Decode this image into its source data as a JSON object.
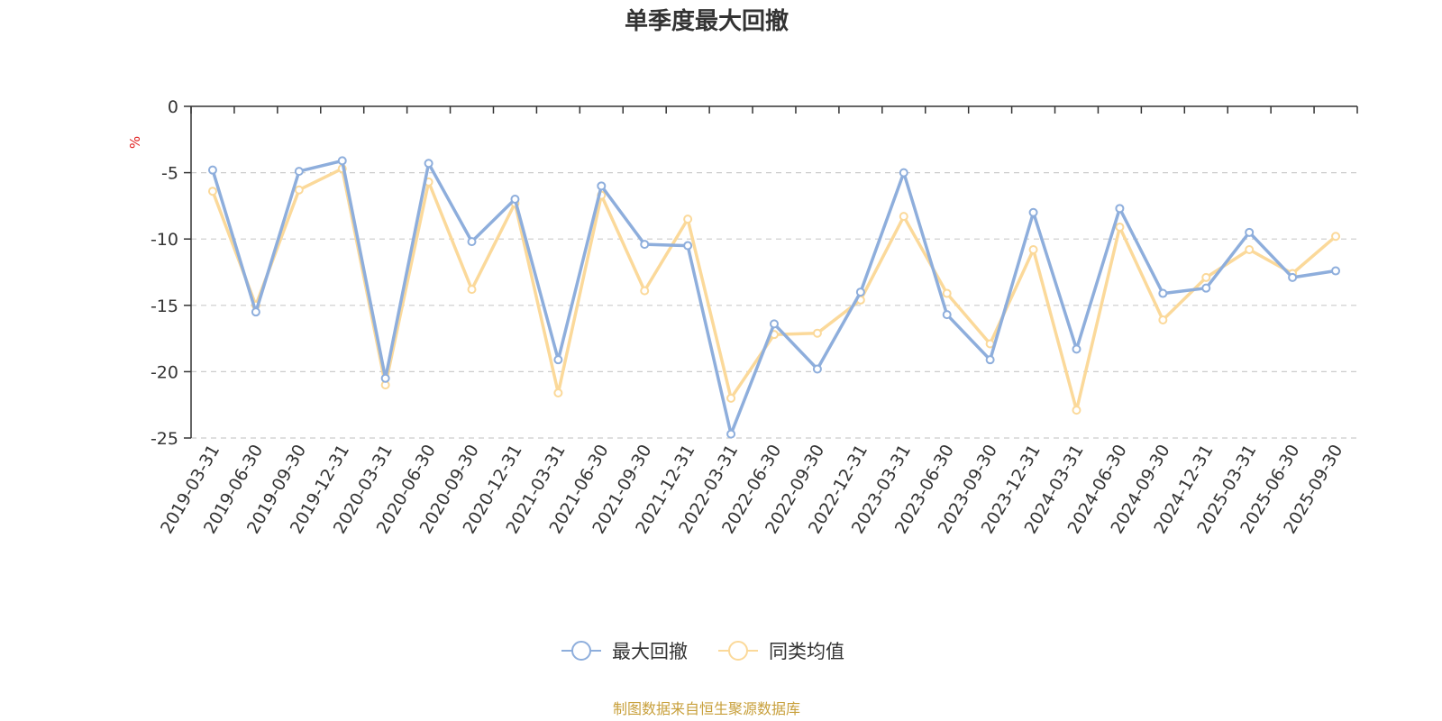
{
  "chart_data": {
    "type": "line",
    "title": "单季度最大回撤",
    "ylabel": "%",
    "ylim": [
      -25,
      0
    ],
    "yticks": [
      0,
      -5,
      -10,
      -15,
      -20,
      -25
    ],
    "grid": true,
    "legend_position": "bottom-center",
    "categories": [
      "2019-03-31",
      "2019-06-30",
      "2019-09-30",
      "2019-12-31",
      "2020-03-31",
      "2020-06-30",
      "2020-09-30",
      "2020-12-31",
      "2021-03-31",
      "2021-06-30",
      "2021-09-30",
      "2021-12-31",
      "2022-03-31",
      "2022-06-30",
      "2022-09-30",
      "2022-12-31",
      "2023-03-31",
      "2023-06-30",
      "2023-09-30",
      "2023-12-31",
      "2024-03-31",
      "2024-06-30",
      "2024-09-30",
      "2024-12-31",
      "2025-03-31",
      "2025-06-30",
      "2025-09-30"
    ],
    "series": [
      {
        "name": "最大回撤",
        "color": "#8eaedc",
        "values": [
          -4.8,
          -15.5,
          -4.9,
          -4.1,
          -20.5,
          -4.3,
          -10.2,
          -7.0,
          -19.1,
          -6.0,
          -10.4,
          -10.5,
          -24.7,
          -16.4,
          -19.8,
          -14.0,
          -5.0,
          -15.7,
          -19.1,
          -8.0,
          -18.3,
          -7.7,
          -14.1,
          -13.7,
          -9.5,
          -12.9,
          -12.4
        ]
      },
      {
        "name": "同类均值",
        "color": "#fbd99a",
        "values": [
          -6.4,
          -15.0,
          -6.3,
          -4.7,
          -21.0,
          -5.7,
          -13.8,
          -7.3,
          -21.6,
          -6.7,
          -13.9,
          -8.5,
          -22.0,
          -17.2,
          -17.1,
          -14.6,
          -8.3,
          -14.1,
          -17.9,
          -10.8,
          -22.9,
          -9.1,
          -16.1,
          -12.9,
          -10.8,
          -12.6,
          -9.8
        ]
      }
    ],
    "source": "制图数据来自恒生聚源数据库",
    "source_color": "#c8a03c",
    "unit_color": "#e02020"
  }
}
